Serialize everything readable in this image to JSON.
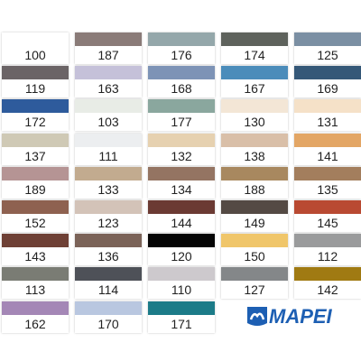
{
  "swatches": [
    {
      "code": "100",
      "color": "#ffffff"
    },
    {
      "code": "187",
      "color": "#8a7b78"
    },
    {
      "code": "176",
      "color": "#94a7aa"
    },
    {
      "code": "174",
      "color": "#5e625c"
    },
    {
      "code": "125",
      "color": "#7b8fa3"
    },
    {
      "code": "119",
      "color": "#6b6466"
    },
    {
      "code": "163",
      "color": "#c5c1d9"
    },
    {
      "code": "168",
      "color": "#7d93b6"
    },
    {
      "code": "167",
      "color": "#4b8cba"
    },
    {
      "code": "169",
      "color": "#355878"
    },
    {
      "code": "172",
      "color": "#2e5b9c"
    },
    {
      "code": "103",
      "color": "#e8ece6"
    },
    {
      "code": "177",
      "color": "#8aa79e"
    },
    {
      "code": "130",
      "color": "#f3e6d6"
    },
    {
      "code": "131",
      "color": "#f5e1c8"
    },
    {
      "code": "137",
      "color": "#cfc9b5"
    },
    {
      "code": "111",
      "color": "#eceef0"
    },
    {
      "code": "132",
      "color": "#e6d1b0"
    },
    {
      "code": "138",
      "color": "#d9bfa8"
    },
    {
      "code": "141",
      "color": "#e3a665"
    },
    {
      "code": "189",
      "color": "#b59494"
    },
    {
      "code": "133",
      "color": "#c2ab8f"
    },
    {
      "code": "134",
      "color": "#947462"
    },
    {
      "code": "188",
      "color": "#a8885f"
    },
    {
      "code": "135",
      "color": "#a37e5d"
    },
    {
      "code": "152",
      "color": "#8e6150"
    },
    {
      "code": "123",
      "color": "#d3c3b8"
    },
    {
      "code": "144",
      "color": "#6b3a33"
    },
    {
      "code": "149",
      "color": "#544a44"
    },
    {
      "code": "145",
      "color": "#b94a32"
    },
    {
      "code": "143",
      "color": "#6e4035"
    },
    {
      "code": "136",
      "color": "#7b6358"
    },
    {
      "code": "120",
      "color": "#050505"
    },
    {
      "code": "150",
      "color": "#f0c66a"
    },
    {
      "code": "112",
      "color": "#9a9b9c"
    },
    {
      "code": "113",
      "color": "#7a7c74"
    },
    {
      "code": "114",
      "color": "#4e5158"
    },
    {
      "code": "110",
      "color": "#cdc9cd"
    },
    {
      "code": "127",
      "color": "#848789"
    },
    {
      "code": "142",
      "color": "#a07a12"
    },
    {
      "code": "162",
      "color": "#a487b6"
    },
    {
      "code": "170",
      "color": "#b9c7e0"
    },
    {
      "code": "171",
      "color": "#1c7b88"
    }
  ],
  "logo": "MAPEI"
}
